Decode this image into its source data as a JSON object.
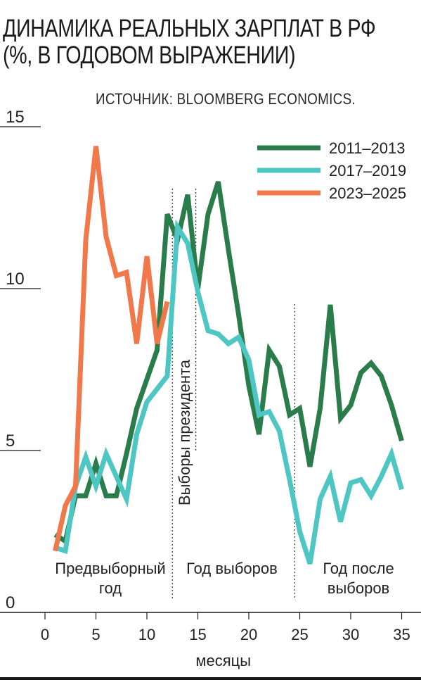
{
  "title_line1": "ДИНАМИКА РЕАЛЬНЫХ ЗАРПЛАТ В РФ",
  "title_line2": "(%, В ГОДОВОМ ВЫРАЖЕНИИ)",
  "source": "ИСТОЧНИК: BLOOMBERG ECONOMICS.",
  "chart_data": {
    "type": "line",
    "xlabel": "месяцы",
    "ylabel": "",
    "xlim": [
      -4,
      37
    ],
    "ylim": [
      0,
      15.5
    ],
    "x_ticks": [
      0,
      5,
      10,
      15,
      20,
      25,
      30,
      35
    ],
    "y_ticks": [
      0,
      5,
      10,
      15
    ],
    "grid": false,
    "legend_position": "top-right",
    "series": [
      {
        "name": "2011–2013",
        "color": "#2a7d4b",
        "x": [
          1,
          2,
          3,
          4,
          5,
          6,
          7,
          8,
          9,
          10,
          11,
          12,
          13,
          14,
          15,
          16,
          17,
          18,
          19,
          20,
          21,
          22,
          23,
          24,
          25,
          26,
          27,
          28,
          29,
          30,
          31,
          32,
          33,
          34,
          35
        ],
        "y": [
          2.4,
          2.2,
          3.6,
          3.6,
          4.6,
          3.6,
          3.6,
          4.9,
          6.3,
          7.2,
          8.1,
          12.3,
          11.5,
          12.9,
          10.0,
          12.3,
          13.3,
          11.2,
          9.2,
          7.0,
          5.5,
          8.1,
          7.6,
          6.1,
          6.3,
          4.5,
          6.3,
          9.5,
          6.0,
          6.4,
          7.4,
          7.7,
          7.3,
          6.4,
          5.3
        ]
      },
      {
        "name": "2017–2019",
        "color": "#4ec6c4",
        "x": [
          1,
          2,
          3,
          4,
          5,
          6,
          7,
          8,
          9,
          10,
          11,
          12,
          13,
          14,
          15,
          16,
          17,
          18,
          19,
          20,
          21,
          22,
          23,
          24,
          25,
          26,
          27,
          28,
          29,
          30,
          31,
          32,
          33,
          34,
          35
        ],
        "y": [
          2.0,
          1.9,
          3.9,
          4.8,
          3.9,
          4.9,
          4.2,
          3.5,
          5.5,
          6.5,
          6.9,
          7.3,
          11.9,
          11.4,
          9.9,
          8.7,
          8.6,
          8.3,
          8.5,
          7.8,
          6.1,
          6.2,
          5.6,
          4.1,
          2.5,
          1.5,
          3.5,
          4.2,
          2.8,
          4.0,
          4.1,
          3.6,
          4.2,
          4.9,
          3.8
        ]
      },
      {
        "name": "2023–2025",
        "color": "#f0784a",
        "x": [
          1,
          2,
          3,
          4,
          5,
          6,
          7,
          8,
          9,
          10,
          11,
          12
        ],
        "y": [
          1.9,
          3.3,
          3.9,
          11.5,
          14.4,
          11.6,
          10.4,
          10.5,
          8.3,
          11.0,
          8.3,
          9.6
        ]
      }
    ],
    "vertical_markers": [
      12.5,
      14.8,
      24.5
    ],
    "annotations": {
      "election": "Выборы президента",
      "period_pre": [
        "Предвыборный",
        "год"
      ],
      "period_election": "Год выборов",
      "period_post": [
        "Год после",
        "выборов"
      ]
    }
  }
}
